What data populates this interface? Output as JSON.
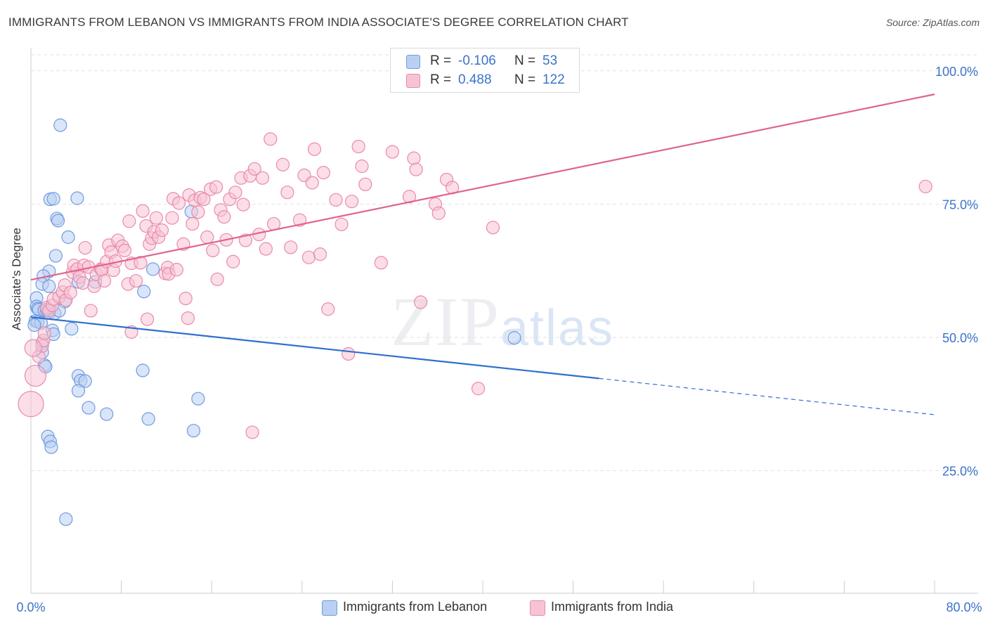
{
  "header": {
    "title": "IMMIGRANTS FROM LEBANON VS IMMIGRANTS FROM INDIA ASSOCIATE'S DEGREE CORRELATION CHART",
    "source": "Source: ZipAtlas.com"
  },
  "watermark": {
    "zip": "ZIP",
    "atlas": "atlas"
  },
  "legend_top": {
    "rows": [
      {
        "r_label": "R =",
        "r_value": "-0.106",
        "n_label": "N =",
        "n_value": "53"
      },
      {
        "r_label": "R =",
        "r_value": "0.488",
        "n_label": "N =",
        "n_value": "122"
      }
    ]
  },
  "legend_bottom": {
    "items": [
      {
        "label": "Immigrants from Lebanon"
      },
      {
        "label": "Immigrants from India"
      }
    ]
  },
  "colors": {
    "lebanon_fill": "#b9d0f2",
    "lebanon_stroke": "#6f9be0",
    "lebanon_line": "#2f6fd0",
    "india_fill": "#f7c3d4",
    "india_stroke": "#e98aaa",
    "india_line": "#e0648f",
    "tick_label": "#3b73c8",
    "grid": "#e2e2e2"
  },
  "chart_data": {
    "type": "scatter",
    "title": "IMMIGRANTS FROM LEBANON VS IMMIGRANTS FROM INDIA ASSOCIATE'S DEGREE CORRELATION CHART",
    "xlabel": "",
    "ylabel": "Associate's Degree",
    "xlim": [
      0,
      80
    ],
    "ylim": [
      2,
      103
    ],
    "x_tick_labels": [
      "0.0%",
      "80.0%"
    ],
    "y_ticks": [
      25,
      50,
      75,
      100
    ],
    "y_tick_labels": [
      "25.0%",
      "50.0%",
      "75.0%",
      "100.0%"
    ],
    "grid": true,
    "legend_placement": "top-center",
    "series": [
      {
        "name": "Immigrants from Lebanon",
        "r": -0.106,
        "n": 53,
        "trend": {
          "solid": [
            [
              0,
              53.8
            ],
            [
              50.3,
              42.3
            ]
          ],
          "dashed": [
            [
              50.3,
              42.3
            ],
            [
              80,
              35.5
            ]
          ]
        },
        "points": [
          [
            2.6,
            89.8
          ],
          [
            1.7,
            75.9
          ],
          [
            2.0,
            76.0
          ],
          [
            4.1,
            76.1
          ],
          [
            2.3,
            72.3
          ],
          [
            2.4,
            71.9
          ],
          [
            3.3,
            68.8
          ],
          [
            2.2,
            65.3
          ],
          [
            1.6,
            62.4
          ],
          [
            1.1,
            61.5
          ],
          [
            1.0,
            60.0
          ],
          [
            1.6,
            59.6
          ],
          [
            0.5,
            57.4
          ],
          [
            0.5,
            55.8
          ],
          [
            0.6,
            55.4
          ],
          [
            0.7,
            55.2
          ],
          [
            1.2,
            55.1
          ],
          [
            1.6,
            54.6
          ],
          [
            2.1,
            54.5
          ],
          [
            0.4,
            53.1
          ],
          [
            0.6,
            52.9
          ],
          [
            0.9,
            52.7
          ],
          [
            0.3,
            52.3
          ],
          [
            1.9,
            51.3
          ],
          [
            3.6,
            51.6
          ],
          [
            2.0,
            50.6
          ],
          [
            1.0,
            48.9
          ],
          [
            1.0,
            47.2
          ],
          [
            1.2,
            44.8
          ],
          [
            1.3,
            44.5
          ],
          [
            3.0,
            56.7
          ],
          [
            4.2,
            60.4
          ],
          [
            5.7,
            60.4
          ],
          [
            10.0,
            58.6
          ],
          [
            10.8,
            62.8
          ],
          [
            14.2,
            73.6
          ],
          [
            4.2,
            42.8
          ],
          [
            4.4,
            41.9
          ],
          [
            4.8,
            41.8
          ],
          [
            4.2,
            40.0
          ],
          [
            5.1,
            36.8
          ],
          [
            6.7,
            35.6
          ],
          [
            9.9,
            43.8
          ],
          [
            10.4,
            34.7
          ],
          [
            14.8,
            38.5
          ],
          [
            14.4,
            32.5
          ],
          [
            1.5,
            31.4
          ],
          [
            1.7,
            30.5
          ],
          [
            1.8,
            29.4
          ],
          [
            3.1,
            15.9
          ],
          [
            42.8,
            49.9
          ],
          [
            1.4,
            55.2
          ],
          [
            2.5,
            55.0
          ]
        ]
      },
      {
        "name": "Immigrants from India",
        "r": 0.488,
        "n": 122,
        "trend": {
          "solid": [
            [
              0,
              60.8
            ],
            [
              80,
              95.6
            ]
          ]
        },
        "points": [
          [
            0.0,
            37.5
          ],
          [
            0.4,
            42.8
          ],
          [
            0.7,
            46.4
          ],
          [
            1.0,
            48.4
          ],
          [
            1.1,
            49.4
          ],
          [
            1.2,
            50.8
          ],
          [
            1.4,
            55.6
          ],
          [
            1.6,
            55.0
          ],
          [
            1.9,
            56.0
          ],
          [
            2.0,
            57.2
          ],
          [
            2.5,
            57.6
          ],
          [
            2.8,
            58.5
          ],
          [
            3.0,
            59.8
          ],
          [
            3.1,
            57.0
          ],
          [
            3.5,
            58.4
          ],
          [
            3.7,
            62.2
          ],
          [
            3.8,
            63.5
          ],
          [
            4.1,
            62.8
          ],
          [
            4.3,
            61.3
          ],
          [
            4.6,
            60.2
          ],
          [
            4.7,
            63.5
          ],
          [
            4.8,
            66.8
          ],
          [
            5.1,
            63.2
          ],
          [
            5.3,
            55.0
          ],
          [
            5.6,
            59.6
          ],
          [
            5.8,
            61.8
          ],
          [
            6.2,
            62.8
          ],
          [
            6.3,
            62.7
          ],
          [
            6.5,
            60.6
          ],
          [
            6.7,
            64.2
          ],
          [
            6.9,
            67.3
          ],
          [
            7.1,
            66.0
          ],
          [
            7.3,
            62.6
          ],
          [
            7.5,
            64.3
          ],
          [
            7.7,
            68.2
          ],
          [
            8.1,
            67.1
          ],
          [
            8.3,
            66.3
          ],
          [
            8.6,
            60.0
          ],
          [
            8.7,
            71.8
          ],
          [
            8.9,
            63.9
          ],
          [
            8.9,
            51.0
          ],
          [
            9.3,
            60.6
          ],
          [
            9.7,
            64.0
          ],
          [
            9.9,
            73.7
          ],
          [
            10.2,
            70.9
          ],
          [
            10.3,
            53.4
          ],
          [
            10.5,
            67.5
          ],
          [
            10.7,
            68.6
          ],
          [
            10.9,
            69.8
          ],
          [
            11.1,
            72.4
          ],
          [
            11.3,
            68.8
          ],
          [
            11.6,
            70.1
          ],
          [
            11.9,
            62.0
          ],
          [
            12.1,
            63.1
          ],
          [
            12.2,
            61.9
          ],
          [
            12.5,
            72.4
          ],
          [
            12.6,
            76.0
          ],
          [
            12.9,
            62.7
          ],
          [
            13.1,
            75.2
          ],
          [
            13.5,
            67.5
          ],
          [
            13.7,
            57.3
          ],
          [
            13.9,
            53.6
          ],
          [
            14.0,
            76.7
          ],
          [
            14.3,
            71.3
          ],
          [
            14.5,
            75.7
          ],
          [
            14.8,
            73.5
          ],
          [
            15.0,
            76.2
          ],
          [
            15.3,
            75.9
          ],
          [
            15.6,
            68.8
          ],
          [
            15.9,
            77.8
          ],
          [
            16.1,
            66.3
          ],
          [
            16.4,
            78.2
          ],
          [
            16.5,
            60.9
          ],
          [
            16.8,
            73.9
          ],
          [
            17.1,
            72.6
          ],
          [
            17.3,
            68.3
          ],
          [
            17.6,
            75.9
          ],
          [
            17.9,
            64.2
          ],
          [
            18.1,
            77.2
          ],
          [
            18.6,
            79.9
          ],
          [
            18.8,
            74.9
          ],
          [
            19.0,
            68.2
          ],
          [
            19.4,
            80.3
          ],
          [
            19.8,
            81.6
          ],
          [
            20.2,
            69.3
          ],
          [
            20.5,
            79.9
          ],
          [
            20.8,
            66.6
          ],
          [
            21.2,
            87.2
          ],
          [
            21.5,
            71.3
          ],
          [
            22.3,
            82.4
          ],
          [
            22.7,
            77.2
          ],
          [
            23.0,
            66.9
          ],
          [
            23.8,
            72.0
          ],
          [
            24.2,
            80.4
          ],
          [
            24.6,
            65.0
          ],
          [
            24.9,
            79.0
          ],
          [
            25.1,
            85.3
          ],
          [
            25.6,
            65.6
          ],
          [
            25.9,
            80.9
          ],
          [
            26.3,
            55.3
          ],
          [
            27.0,
            75.8
          ],
          [
            27.5,
            71.2
          ],
          [
            28.1,
            46.9
          ],
          [
            28.4,
            75.5
          ],
          [
            29.0,
            85.8
          ],
          [
            29.3,
            82.1
          ],
          [
            29.6,
            78.7
          ],
          [
            31.0,
            64.0
          ],
          [
            32.0,
            84.8
          ],
          [
            33.5,
            76.4
          ],
          [
            33.9,
            83.6
          ],
          [
            34.1,
            81.5
          ],
          [
            34.5,
            56.6
          ],
          [
            35.8,
            75.0
          ],
          [
            36.1,
            73.3
          ],
          [
            36.8,
            79.6
          ],
          [
            37.3,
            78.1
          ],
          [
            39.6,
            40.4
          ],
          [
            40.9,
            70.6
          ],
          [
            19.6,
            32.2
          ],
          [
            79.2,
            78.3
          ],
          [
            0.2,
            48.0
          ]
        ]
      }
    ]
  }
}
